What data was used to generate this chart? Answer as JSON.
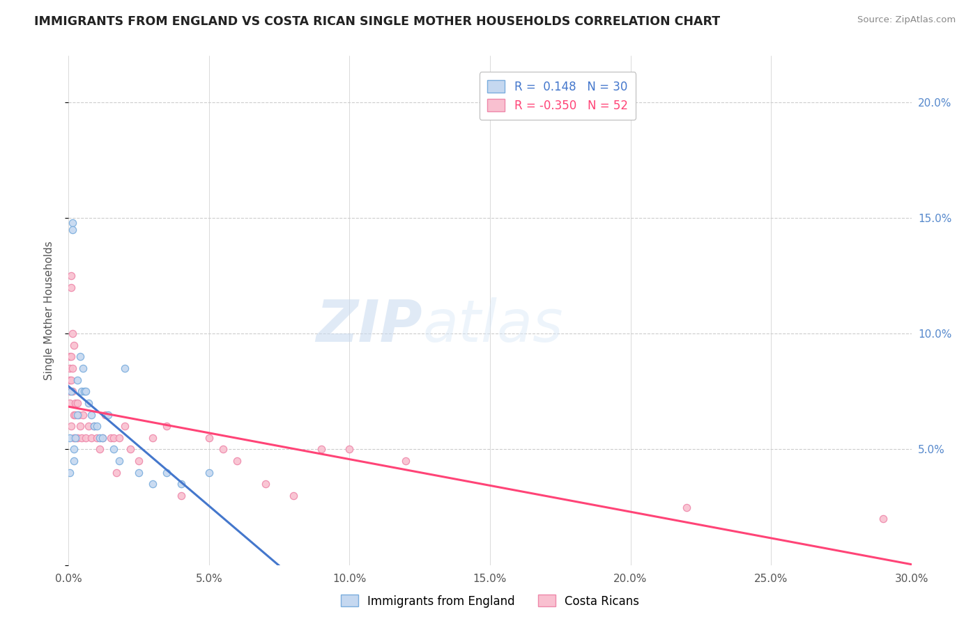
{
  "title": "IMMIGRANTS FROM ENGLAND VS COSTA RICAN SINGLE MOTHER HOUSEHOLDS CORRELATION CHART",
  "source": "Source: ZipAtlas.com",
  "ylabel": "Single Mother Households",
  "watermark": "ZIPatlas",
  "legend_entries": [
    {
      "label": "Immigrants from England",
      "R": "0.148",
      "N": 30,
      "color": "#b8d0ec"
    },
    {
      "label": "Costa Ricans",
      "R": "-0.350",
      "N": 52,
      "color": "#f4a8c0"
    }
  ],
  "england_scatter_x": [
    0.05,
    0.05,
    0.1,
    0.15,
    0.15,
    0.2,
    0.2,
    0.25,
    0.3,
    0.3,
    0.4,
    0.45,
    0.5,
    0.55,
    0.6,
    0.7,
    0.8,
    0.9,
    1.0,
    1.1,
    1.2,
    1.4,
    1.6,
    1.8,
    2.0,
    2.5,
    3.0,
    3.5,
    4.0,
    5.0
  ],
  "england_scatter_y": [
    5.5,
    4.0,
    7.5,
    14.8,
    14.5,
    4.5,
    5.0,
    5.5,
    6.5,
    8.0,
    9.0,
    7.5,
    8.5,
    7.5,
    7.5,
    7.0,
    6.5,
    6.0,
    6.0,
    5.5,
    5.5,
    6.5,
    5.0,
    4.5,
    8.5,
    4.0,
    3.5,
    4.0,
    3.5,
    4.0
  ],
  "costarica_scatter_x": [
    0.05,
    0.05,
    0.05,
    0.05,
    0.05,
    0.1,
    0.1,
    0.1,
    0.1,
    0.1,
    0.15,
    0.15,
    0.15,
    0.2,
    0.2,
    0.2,
    0.25,
    0.25,
    0.3,
    0.3,
    0.35,
    0.4,
    0.45,
    0.5,
    0.6,
    0.7,
    0.8,
    0.9,
    1.0,
    1.1,
    1.2,
    1.3,
    1.5,
    1.6,
    1.7,
    1.8,
    2.0,
    2.2,
    2.5,
    3.0,
    3.5,
    4.0,
    5.0,
    5.5,
    6.0,
    7.0,
    8.0,
    9.0,
    10.0,
    12.0,
    22.0,
    29.0
  ],
  "costarica_scatter_y": [
    9.0,
    8.5,
    8.0,
    7.5,
    7.0,
    12.5,
    12.0,
    9.0,
    8.0,
    6.0,
    10.0,
    8.5,
    7.5,
    9.5,
    6.5,
    5.5,
    7.0,
    6.5,
    7.0,
    5.5,
    6.5,
    6.0,
    5.5,
    6.5,
    5.5,
    6.0,
    5.5,
    6.0,
    5.5,
    5.0,
    5.5,
    6.5,
    5.5,
    5.5,
    4.0,
    5.5,
    6.0,
    5.0,
    4.5,
    5.5,
    6.0,
    3.0,
    5.5,
    5.0,
    4.5,
    3.5,
    3.0,
    5.0,
    5.0,
    4.5,
    2.5,
    2.0
  ],
  "xlim": [
    0.0,
    30.0
  ],
  "ylim": [
    0.0,
    22.0
  ],
  "right_ytick_vals": [
    5.0,
    10.0,
    15.0,
    20.0
  ],
  "right_ytick_labels": [
    "5.0%",
    "10.0%",
    "15.0%",
    "20.0%"
  ],
  "xtick_vals": [
    0,
    5,
    10,
    15,
    20,
    25,
    30
  ],
  "xtick_labels": [
    "0.0%",
    "5.0%",
    "10.0%",
    "15.0%",
    "20.0%",
    "25.0%",
    "30.0%"
  ],
  "grid_color": "#cccccc",
  "grid_style_h": "--",
  "grid_style_v": "-",
  "background_color": "#ffffff",
  "england_line_color": "#4477cc",
  "england_line_style": "--",
  "costarica_line_color": "#ff4477",
  "costarica_line_style": "-",
  "scatter_size": 55,
  "england_marker_color": "#c5d8f0",
  "england_marker_edge": "#7aaddd",
  "costarica_marker_color": "#f9c0d0",
  "costarica_marker_edge": "#ee88aa"
}
